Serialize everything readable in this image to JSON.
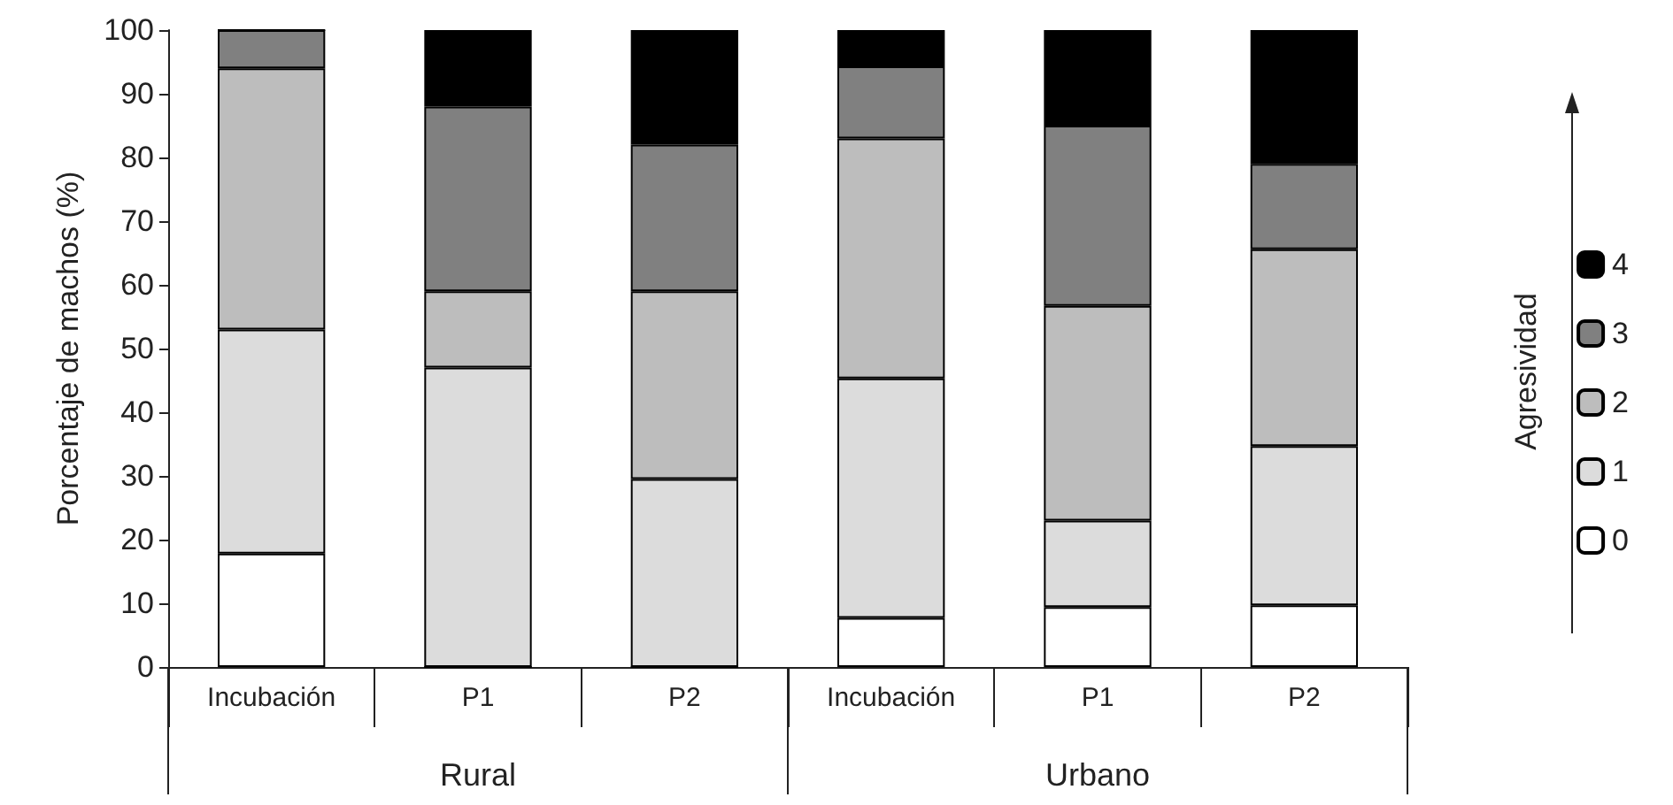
{
  "chart_data": {
    "type": "bar",
    "stacked": true,
    "ylabel": "Porcentaje de machos (%)",
    "legend_title": "Agresividad",
    "legend": "right",
    "grid": false,
    "categories": [
      "Incubación",
      "P1",
      "P2",
      "Incubación",
      "P1",
      "P2"
    ],
    "annotations": [
      "Rural",
      "Urbano"
    ],
    "ylim": [
      0,
      100
    ],
    "yticks": [
      0,
      10,
      20,
      30,
      40,
      50,
      60,
      70,
      80,
      90,
      100
    ],
    "series": [
      {
        "name": "0",
        "color": "#ffffff",
        "values": [
          17.8,
          0,
          0,
          7.7,
          9.4,
          9.7
        ]
      },
      {
        "name": "1",
        "color": "#dcdcdc",
        "values": [
          35.2,
          47,
          29.5,
          37.6,
          13.6,
          25
        ]
      },
      {
        "name": "2",
        "color": "#bdbdbd",
        "values": [
          41,
          12,
          29.5,
          37.7,
          33.7,
          30.9
        ]
      },
      {
        "name": "3",
        "color": "#808080",
        "values": [
          6,
          29,
          23,
          11.3,
          28.3,
          13.4
        ]
      },
      {
        "name": "4",
        "color": "#000000",
        "values": [
          0,
          12,
          18,
          5.7,
          15,
          21
        ]
      }
    ]
  }
}
